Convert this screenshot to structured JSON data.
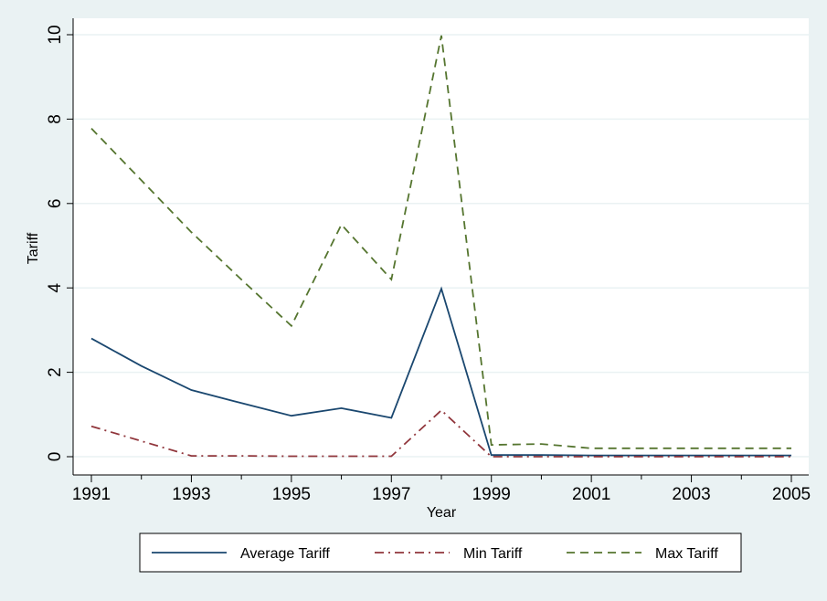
{
  "chart_data": {
    "type": "line",
    "title": "",
    "xlabel": "Year",
    "ylabel": "Tariff",
    "xlim": [
      1991,
      2005
    ],
    "ylim": [
      0,
      10
    ],
    "x_ticks": [
      1991,
      1993,
      1995,
      1997,
      1999,
      2001,
      2003,
      2005
    ],
    "x_minor_ticks": [
      1992,
      1994,
      1996,
      1998,
      2000,
      2002,
      2004
    ],
    "y_ticks": [
      0,
      2,
      4,
      6,
      8,
      10
    ],
    "grid": "horizontal",
    "legend_position": "bottom",
    "x": [
      1991,
      1992,
      1993,
      1994,
      1995,
      1996,
      1997,
      1998,
      1999,
      2000,
      2001,
      2002,
      2003,
      2004,
      2005
    ],
    "series": [
      {
        "name": "Average Tariff",
        "color": "#1a476f",
        "dash": "solid",
        "values": [
          2.8,
          2.15,
          1.58,
          1.27,
          0.97,
          1.15,
          0.92,
          3.98,
          0.04,
          0.04,
          0.03,
          0.03,
          0.03,
          0.03,
          0.03
        ]
      },
      {
        "name": "Min Tariff",
        "color": "#90353b",
        "dash": "dashdot",
        "values": [
          0.72,
          0.37,
          0.02,
          0.02,
          0.01,
          0.01,
          0.01,
          1.1,
          0.0,
          0.0,
          0.0,
          0.0,
          0.0,
          0.0,
          0.0
        ]
      },
      {
        "name": "Max Tariff",
        "color": "#55752f",
        "dash": "dash",
        "values": [
          7.78,
          6.55,
          5.32,
          4.2,
          3.1,
          5.5,
          4.2,
          9.98,
          0.28,
          0.3,
          0.2,
          0.2,
          0.2,
          0.2,
          0.2
        ]
      }
    ]
  }
}
